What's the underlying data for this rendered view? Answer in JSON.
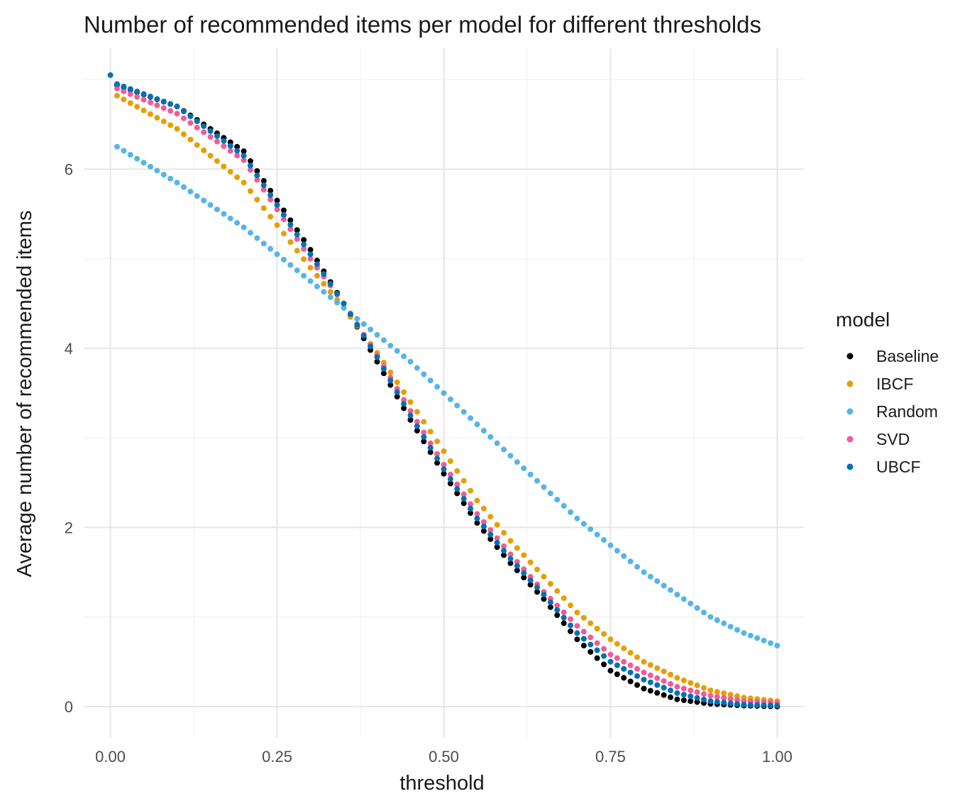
{
  "chart_data": {
    "type": "scatter",
    "title": "Number of recommended items per model for different thresholds",
    "xlabel": "threshold",
    "ylabel": "Average number of recommended items",
    "xlim": [
      -0.04,
      1.04
    ],
    "ylim": [
      -0.35,
      7.35
    ],
    "x_ticks": [
      0,
      0.25,
      0.5,
      0.75,
      1
    ],
    "x_tick_labels": [
      "0.00",
      "0.25",
      "0.50",
      "0.75",
      "1.00"
    ],
    "y_ticks": [
      0,
      2,
      4,
      6
    ],
    "y_tick_labels": [
      "0",
      "2",
      "4",
      "6"
    ],
    "grid": true,
    "legend": {
      "title": "model",
      "placement": "right"
    },
    "series": [
      {
        "name": "Baseline",
        "color": "#000000",
        "points": [
          [
            0.01,
            6.94
          ],
          [
            0.1,
            6.7
          ],
          [
            0.2,
            6.2
          ],
          [
            0.3,
            5.1
          ],
          [
            0.35,
            4.5
          ],
          [
            0.4,
            3.85
          ],
          [
            0.45,
            3.2
          ],
          [
            0.5,
            2.6
          ],
          [
            0.55,
            2.05
          ],
          [
            0.6,
            1.6
          ],
          [
            0.65,
            1.2
          ],
          [
            0.7,
            0.75
          ],
          [
            0.75,
            0.4
          ],
          [
            0.8,
            0.2
          ],
          [
            0.85,
            0.08
          ],
          [
            0.9,
            0.03
          ],
          [
            0.95,
            0.01
          ],
          [
            1.0,
            0.0
          ]
        ]
      },
      {
        "name": "IBCF",
        "color": "#E69F00",
        "points": [
          [
            0.01,
            6.82
          ],
          [
            0.1,
            6.45
          ],
          [
            0.2,
            5.85
          ],
          [
            0.3,
            4.9
          ],
          [
            0.35,
            4.45
          ],
          [
            0.4,
            3.95
          ],
          [
            0.45,
            3.4
          ],
          [
            0.5,
            2.85
          ],
          [
            0.55,
            2.3
          ],
          [
            0.6,
            1.85
          ],
          [
            0.65,
            1.45
          ],
          [
            0.7,
            1.05
          ],
          [
            0.75,
            0.75
          ],
          [
            0.8,
            0.5
          ],
          [
            0.85,
            0.32
          ],
          [
            0.9,
            0.18
          ],
          [
            0.95,
            0.1
          ],
          [
            1.0,
            0.06
          ]
        ]
      },
      {
        "name": "Random",
        "color": "#56B4E9",
        "points": [
          [
            0.01,
            6.25
          ],
          [
            0.1,
            5.85
          ],
          [
            0.2,
            5.35
          ],
          [
            0.3,
            4.75
          ],
          [
            0.35,
            4.45
          ],
          [
            0.4,
            4.15
          ],
          [
            0.45,
            3.85
          ],
          [
            0.5,
            3.5
          ],
          [
            0.55,
            3.15
          ],
          [
            0.6,
            2.8
          ],
          [
            0.65,
            2.45
          ],
          [
            0.7,
            2.1
          ],
          [
            0.75,
            1.8
          ],
          [
            0.8,
            1.5
          ],
          [
            0.85,
            1.25
          ],
          [
            0.9,
            1.0
          ],
          [
            0.95,
            0.82
          ],
          [
            1.0,
            0.68
          ]
        ]
      },
      {
        "name": "SVD",
        "color": "#F15B9A",
        "points": [
          [
            0.01,
            6.9
          ],
          [
            0.1,
            6.62
          ],
          [
            0.2,
            6.1
          ],
          [
            0.3,
            5.0
          ],
          [
            0.35,
            4.5
          ],
          [
            0.4,
            3.92
          ],
          [
            0.45,
            3.3
          ],
          [
            0.5,
            2.7
          ],
          [
            0.55,
            2.15
          ],
          [
            0.6,
            1.7
          ],
          [
            0.65,
            1.28
          ],
          [
            0.7,
            0.9
          ],
          [
            0.75,
            0.58
          ],
          [
            0.8,
            0.38
          ],
          [
            0.85,
            0.22
          ],
          [
            0.9,
            0.12
          ],
          [
            0.95,
            0.06
          ],
          [
            1.0,
            0.04
          ]
        ]
      },
      {
        "name": "UBCF",
        "color": "#0072B2",
        "points": [
          [
            0.0,
            7.05
          ],
          [
            0.01,
            6.95
          ],
          [
            0.1,
            6.7
          ],
          [
            0.2,
            6.15
          ],
          [
            0.3,
            5.05
          ],
          [
            0.35,
            4.5
          ],
          [
            0.4,
            3.9
          ],
          [
            0.45,
            3.25
          ],
          [
            0.5,
            2.65
          ],
          [
            0.55,
            2.1
          ],
          [
            0.6,
            1.65
          ],
          [
            0.65,
            1.25
          ],
          [
            0.7,
            0.82
          ],
          [
            0.75,
            0.5
          ],
          [
            0.8,
            0.3
          ],
          [
            0.85,
            0.15
          ],
          [
            0.9,
            0.06
          ],
          [
            0.95,
            0.02
          ],
          [
            1.0,
            0.01
          ]
        ]
      }
    ]
  }
}
